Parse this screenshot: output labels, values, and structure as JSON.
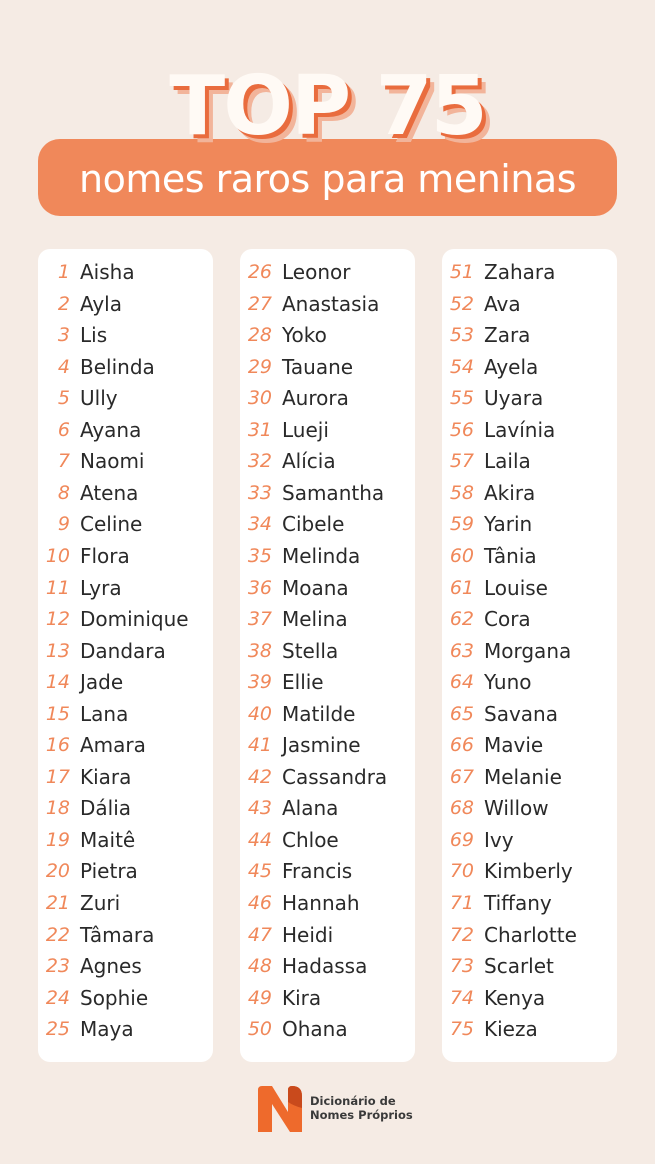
{
  "header": {
    "title": "TOP 75",
    "subtitle": "nomes raros para meninas"
  },
  "colors": {
    "accent": "#f0885a",
    "background": "#f5ebe4",
    "card": "#ffffff"
  },
  "columns": [
    [
      "Aisha",
      "Ayla",
      "Lis",
      "Belinda",
      "Ully",
      "Ayana",
      "Naomi",
      "Atena",
      "Celine",
      "Flora",
      "Lyra",
      "Dominique",
      "Dandara",
      "Jade",
      "Lana",
      "Amara",
      "Kiara",
      "Dália",
      "Maitê",
      "Pietra",
      "Zuri",
      "Tâmara",
      "Agnes",
      "Sophie",
      "Maya"
    ],
    [
      "Leonor",
      "Anastasia",
      "Yoko",
      "Tauane",
      "Aurora",
      "Lueji",
      "Alícia",
      "Samantha",
      "Cibele",
      "Melinda",
      "Moana",
      "Melina",
      "Stella",
      "Ellie",
      "Matilde",
      "Jasmine",
      "Cassandra",
      "Alana",
      "Chloe",
      "Francis",
      "Hannah",
      "Heidi",
      "Hadassa",
      "Kira",
      "Ohana"
    ],
    [
      "Zahara",
      "Ava",
      "Zara",
      "Ayela",
      "Uyara",
      "Lavínia",
      "Laila",
      "Akira",
      "Yarin",
      "Tânia",
      "Louise",
      "Cora",
      "Morgana",
      "Yuno",
      "Savana",
      "Mavie",
      "Melanie",
      "Willow",
      "Ivy",
      "Kimberly",
      "Tiffany",
      "Charlotte",
      "Scarlet",
      "Kenya",
      "Kieza"
    ]
  ],
  "footer": {
    "logo_line1": "Dicionário de",
    "logo_line2": "Nomes Próprios"
  }
}
